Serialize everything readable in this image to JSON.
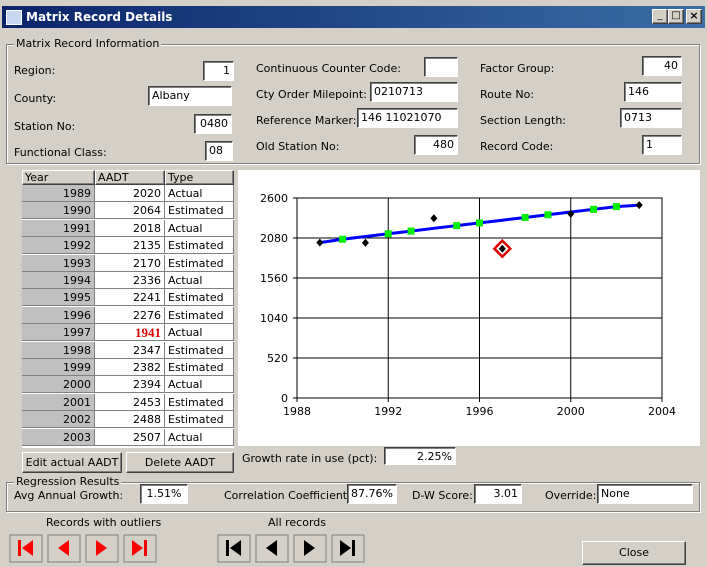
{
  "window": {
    "title": "Matrix Record Details"
  },
  "info": {
    "legend": "Matrix Record Information",
    "fields": [
      {
        "label": "Region:",
        "value": "1"
      },
      {
        "label": "County:",
        "value": "Albany"
      },
      {
        "label": "Station No:",
        "value": "0480"
      },
      {
        "label": "Functional Class:",
        "value": "08"
      },
      {
        "label": "Continuous Counter Code:"
      },
      {
        "label": "Cty Order Milepoint:",
        "value": "0210713"
      },
      {
        "label": "Reference Marker:",
        "value": "146 11021070"
      },
      {
        "label": "Old Station No:",
        "value": "480"
      },
      {
        "label": "Factor Group:",
        "value": "40"
      },
      {
        "label": "Route No:",
        "value": "146"
      },
      {
        "label": "Section Length:",
        "value": "0713"
      },
      {
        "label": "Record Code:",
        "value": "1"
      }
    ]
  },
  "table": {
    "headers": [
      "Year",
      "AADT",
      "Type"
    ],
    "rows": [
      [
        1989,
        2020,
        "Actual"
      ],
      [
        1990,
        2064,
        "Estimated"
      ],
      [
        1991,
        2018,
        "Actual"
      ],
      [
        1992,
        2135,
        "Estimated"
      ],
      [
        1993,
        2170,
        "Estimated"
      ],
      [
        1994,
        2336,
        "Actual"
      ],
      [
        1995,
        2241,
        "Estimated"
      ],
      [
        1996,
        2276,
        "Estimated"
      ],
      [
        1997,
        1941,
        "Actual"
      ],
      [
        1998,
        2347,
        "Estimated"
      ],
      [
        1999,
        2382,
        "Estimated"
      ],
      [
        2000,
        2394,
        "Actual"
      ],
      [
        2001,
        2453,
        "Estimated"
      ],
      [
        2002,
        2488,
        "Estimated"
      ],
      [
        2003,
        2507,
        "Actual"
      ]
    ]
  },
  "buttons": {
    "edit": "Edit actual AADT",
    "delete": "Delete AADT",
    "close": "Close"
  },
  "growth": {
    "label": "Growth rate in use (pct):",
    "value": "2.25%"
  },
  "regression": {
    "legend": "Regression Results",
    "fields": [
      {
        "label": "Avg Annual Growth:",
        "value": "1.51%"
      },
      {
        "label": "Correlation Coefficient:",
        "value": "87.76%"
      },
      {
        "label": "D-W Score:",
        "value": "3.01"
      },
      {
        "label": "Override:",
        "value": "None"
      }
    ]
  },
  "navigation": {
    "outliers": "Records with outliers",
    "all": "All records"
  },
  "chart_data": {
    "type": "scatter",
    "xlim": [
      1988,
      2004
    ],
    "xticks": [
      1988,
      1992,
      1996,
      2000,
      2004
    ],
    "ylim": [
      0,
      2600
    ],
    "yticks": [
      0,
      520,
      1040,
      1560,
      2080,
      2600
    ],
    "grid": true,
    "series": [
      {
        "type": "line",
        "color": "#0000ff",
        "x": [
          1989,
          1990,
          1991,
          1992,
          1993,
          1994,
          1995,
          1996,
          1997,
          1998,
          1999,
          2000,
          2001,
          2002,
          2003
        ],
        "values": [
          2020,
          2064,
          2100,
          2135,
          2170,
          2206,
          2241,
          2276,
          2311,
          2347,
          2382,
          2418,
          2453,
          2488,
          2507
        ]
      },
      {
        "name": "Estimated",
        "marker": "square",
        "color": "#00ee00",
        "x": [
          1990,
          1992,
          1993,
          1995,
          1996,
          1998,
          1999,
          2001,
          2002
        ],
        "values": [
          2064,
          2135,
          2170,
          2241,
          2276,
          2347,
          2382,
          2453,
          2488
        ]
      },
      {
        "name": "Actual",
        "marker": "diamond",
        "color": "#000000",
        "x": [
          1989,
          1991,
          1994,
          1997,
          2000,
          2003
        ],
        "values": [
          2020,
          2018,
          2336,
          1941,
          2394,
          2507
        ]
      },
      {
        "marker": "ring",
        "color": "#e00000",
        "x": [
          1997
        ],
        "values": [
          1941
        ]
      }
    ]
  }
}
